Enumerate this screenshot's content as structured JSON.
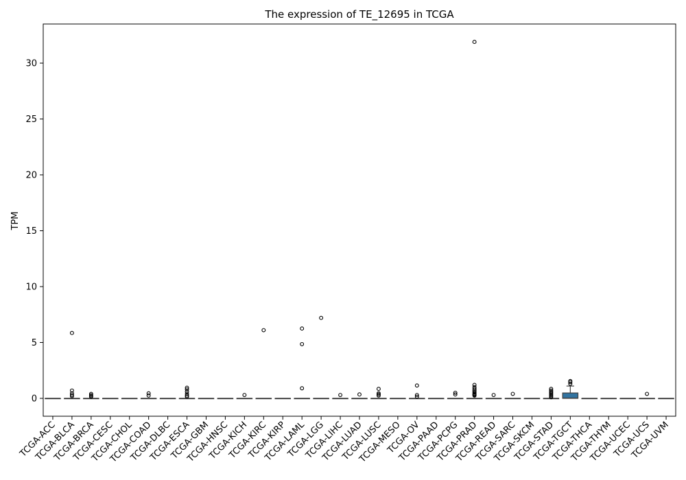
{
  "chart_data": {
    "type": "box",
    "title": "The expression of TE_12695 in TCGA",
    "xlabel": "",
    "ylabel": "TPM",
    "ylim": [
      -1.6,
      33.5
    ],
    "yticks": [
      0,
      5,
      10,
      15,
      20,
      25,
      30
    ],
    "grid": false,
    "categories": [
      "TCGA-ACC",
      "TCGA-BLCA",
      "TCGA-BRCA",
      "TCGA-CESC",
      "TCGA-CHOL",
      "TCGA-COAD",
      "TCGA-DLBC",
      "TCGA-ESCA",
      "TCGA-GBM",
      "TCGA-HNSC",
      "TCGA-KICH",
      "TCGA-KIRC",
      "TCGA-KIRP",
      "TCGA-LAML",
      "TCGA-LGG",
      "TCGA-LIHC",
      "TCGA-LUAD",
      "TCGA-LUSC",
      "TCGA-MESO",
      "TCGA-OV",
      "TCGA-PAAD",
      "TCGA-PCPG",
      "TCGA-PRAD",
      "TCGA-READ",
      "TCGA-SARC",
      "TCGA-SKCM",
      "TCGA-STAD",
      "TCGA-TGCT",
      "TCGA-THCA",
      "TCGA-THYM",
      "TCGA-UCEC",
      "TCGA-UCS",
      "TCGA-UVM"
    ],
    "boxes": [
      {
        "q1": 0,
        "median": 0,
        "q3": 0,
        "whisker_low": 0,
        "whisker_high": 0,
        "outliers": []
      },
      {
        "q1": 0,
        "median": 0,
        "q3": 0,
        "whisker_low": 0,
        "whisker_high": 0,
        "outliers": [
          5.85,
          0.7,
          0.45,
          0.3,
          0.2
        ]
      },
      {
        "q1": 0,
        "median": 0,
        "q3": 0,
        "whisker_low": 0,
        "whisker_high": 0,
        "outliers": [
          0.4,
          0.3,
          0.2,
          0.15
        ]
      },
      {
        "q1": 0,
        "median": 0,
        "q3": 0,
        "whisker_low": 0,
        "whisker_high": 0,
        "outliers": []
      },
      {
        "q1": 0,
        "median": 0,
        "q3": 0,
        "whisker_low": 0,
        "whisker_high": 0,
        "outliers": []
      },
      {
        "q1": 0,
        "median": 0,
        "q3": 0,
        "whisker_low": 0,
        "whisker_high": 0,
        "outliers": [
          0.45,
          0.25
        ]
      },
      {
        "q1": 0,
        "median": 0,
        "q3": 0,
        "whisker_low": 0,
        "whisker_high": 0,
        "outliers": []
      },
      {
        "q1": 0,
        "median": 0,
        "q3": 0,
        "whisker_low": 0,
        "whisker_high": 0,
        "outliers": [
          0.95,
          0.8,
          0.6,
          0.4,
          0.25,
          0.15
        ]
      },
      {
        "q1": 0,
        "median": 0,
        "q3": 0,
        "whisker_low": 0,
        "whisker_high": 0,
        "outliers": []
      },
      {
        "q1": 0,
        "median": 0,
        "q3": 0,
        "whisker_low": 0,
        "whisker_high": 0,
        "outliers": []
      },
      {
        "q1": 0,
        "median": 0,
        "q3": 0,
        "whisker_low": 0,
        "whisker_high": 0,
        "outliers": [
          0.3
        ]
      },
      {
        "q1": 0,
        "median": 0,
        "q3": 0,
        "whisker_low": 0,
        "whisker_high": 0,
        "outliers": [
          6.1
        ]
      },
      {
        "q1": 0,
        "median": 0,
        "q3": 0,
        "whisker_low": 0,
        "whisker_high": 0,
        "outliers": []
      },
      {
        "q1": 0,
        "median": 0,
        "q3": 0,
        "whisker_low": 0,
        "whisker_high": 0,
        "outliers": [
          6.25,
          4.85,
          0.9
        ]
      },
      {
        "q1": 0,
        "median": 0,
        "q3": 0,
        "whisker_low": 0,
        "whisker_high": 0,
        "outliers": [
          7.2
        ]
      },
      {
        "q1": 0,
        "median": 0,
        "q3": 0,
        "whisker_low": 0,
        "whisker_high": 0,
        "outliers": [
          0.3
        ]
      },
      {
        "q1": 0,
        "median": 0,
        "q3": 0,
        "whisker_low": 0,
        "whisker_high": 0,
        "outliers": [
          0.35
        ]
      },
      {
        "q1": 0,
        "median": 0,
        "q3": 0,
        "whisker_low": 0,
        "whisker_high": 0,
        "outliers": [
          0.85,
          0.45,
          0.35,
          0.25
        ]
      },
      {
        "q1": 0,
        "median": 0,
        "q3": 0,
        "whisker_low": 0,
        "whisker_high": 0,
        "outliers": []
      },
      {
        "q1": 0,
        "median": 0,
        "q3": 0,
        "whisker_low": 0,
        "whisker_high": 0,
        "outliers": [
          1.15,
          0.3,
          0.15
        ]
      },
      {
        "q1": 0,
        "median": 0,
        "q3": 0,
        "whisker_low": 0,
        "whisker_high": 0,
        "outliers": []
      },
      {
        "q1": 0,
        "median": 0,
        "q3": 0,
        "whisker_low": 0,
        "whisker_high": 0,
        "outliers": [
          0.5,
          0.35
        ]
      },
      {
        "q1": 0,
        "median": 0,
        "q3": 0,
        "whisker_low": 0,
        "whisker_high": 0,
        "outliers": [
          31.9,
          1.2,
          1.0,
          0.85,
          0.7,
          0.6,
          0.5,
          0.4,
          0.35,
          0.3,
          0.25
        ]
      },
      {
        "q1": 0,
        "median": 0,
        "q3": 0,
        "whisker_low": 0,
        "whisker_high": 0,
        "outliers": [
          0.3
        ]
      },
      {
        "q1": 0,
        "median": 0,
        "q3": 0,
        "whisker_low": 0,
        "whisker_high": 0,
        "outliers": [
          0.4
        ]
      },
      {
        "q1": 0,
        "median": 0,
        "q3": 0,
        "whisker_low": 0,
        "whisker_high": 0,
        "outliers": []
      },
      {
        "q1": 0,
        "median": 0,
        "q3": 0,
        "whisker_low": 0,
        "whisker_high": 0,
        "outliers": [
          0.85,
          0.7,
          0.6,
          0.5,
          0.4,
          0.3,
          0.2,
          0.1
        ]
      },
      {
        "q1": 0,
        "median": 0.02,
        "q3": 0.48,
        "whisker_low": 0,
        "whisker_high": 1.1,
        "outliers": [
          1.55,
          1.45,
          1.3
        ]
      },
      {
        "q1": 0,
        "median": 0,
        "q3": 0,
        "whisker_low": 0,
        "whisker_high": 0,
        "outliers": []
      },
      {
        "q1": 0,
        "median": 0,
        "q3": 0,
        "whisker_low": 0,
        "whisker_high": 0,
        "outliers": []
      },
      {
        "q1": 0,
        "median": 0,
        "q3": 0,
        "whisker_low": 0,
        "whisker_high": 0,
        "outliers": []
      },
      {
        "q1": 0,
        "median": 0,
        "q3": 0,
        "whisker_low": 0,
        "whisker_high": 0,
        "outliers": [
          0.4
        ]
      },
      {
        "q1": 0,
        "median": 0,
        "q3": 0,
        "whisker_low": 0,
        "whisker_high": 0,
        "outliers": []
      }
    ],
    "box_color": "#3274a1",
    "line_color": "#3f3f3f"
  }
}
